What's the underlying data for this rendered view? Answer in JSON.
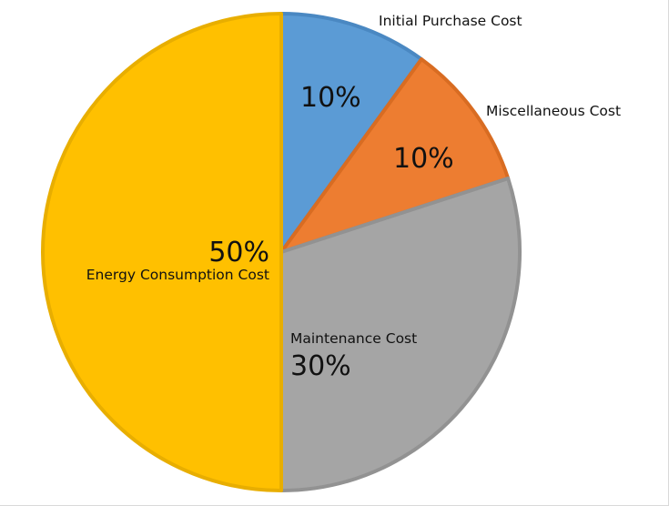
{
  "chart_data": {
    "type": "pie",
    "title": "",
    "categories": [
      "Initial Purchase Cost",
      "Miscellaneous Cost",
      "Maintenance Cost",
      "Energy Consumption Cost"
    ],
    "values": [
      10,
      10,
      30,
      50
    ],
    "value_labels": [
      "10%",
      "10%",
      "30%",
      "50%"
    ],
    "colors": [
      "#5B9BD5",
      "#ED7D31",
      "#A5A5A5",
      "#FFC000"
    ],
    "border_colors": [
      "#4A88C2",
      "#D86C22",
      "#929292",
      "#E8AE00"
    ],
    "start_angle_deg": 0,
    "direction": "clockwise",
    "legend": "none (data labels)"
  },
  "labels": {
    "initial": {
      "name": "Initial Purchase Cost",
      "pct": "10%"
    },
    "misc": {
      "name": "Miscellaneous Cost",
      "pct": "10%"
    },
    "maint": {
      "name": "Maintenance Cost",
      "pct": "30%"
    },
    "energy": {
      "name": "Energy Consumption Cost",
      "pct": "50%"
    }
  }
}
